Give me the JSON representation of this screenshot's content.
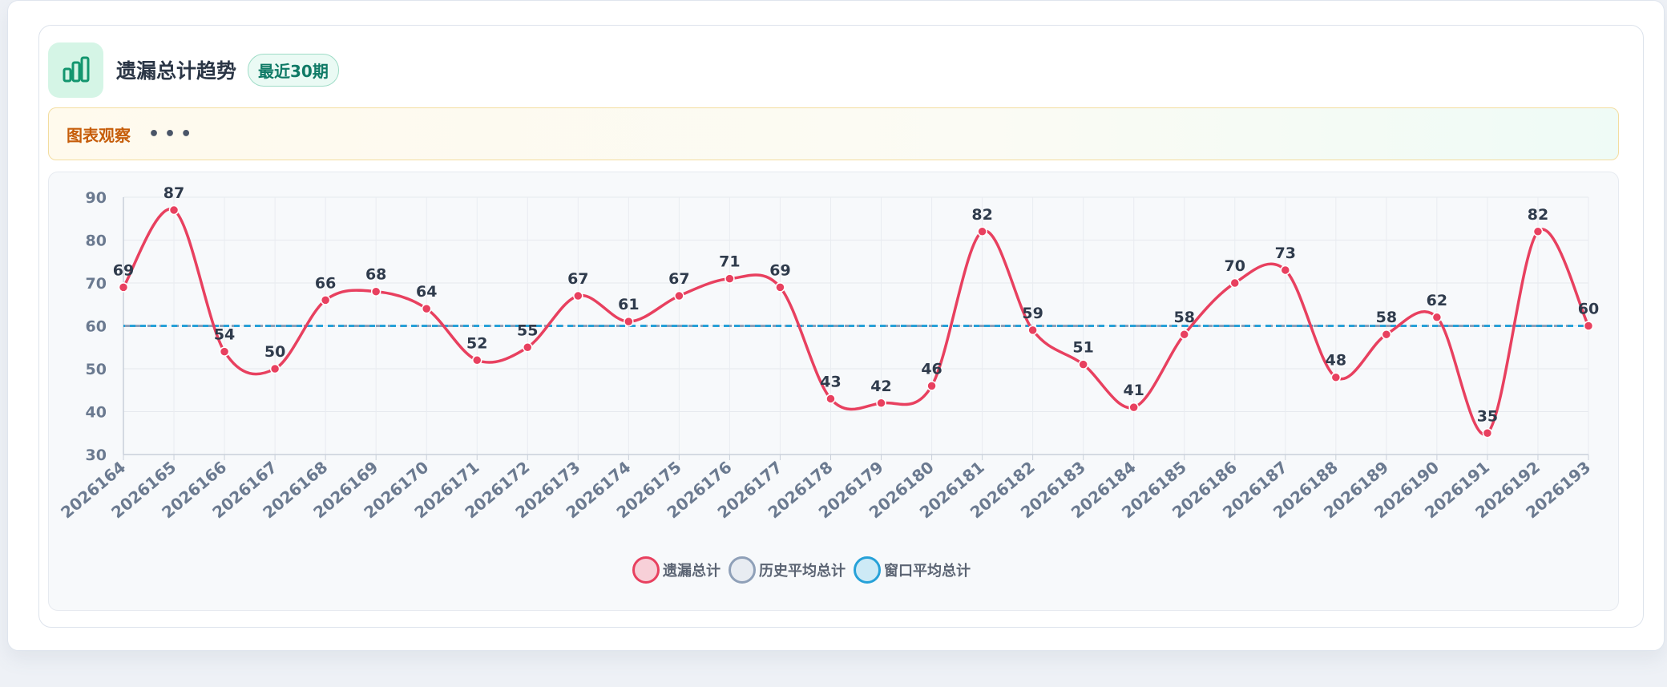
{
  "header": {
    "title": "遗漏总计趋势",
    "badge": "最近30期",
    "icon": "bar-chart-icon"
  },
  "observation": {
    "label": "图表观察",
    "dots": "•••"
  },
  "colors": {
    "series": "#e8405f",
    "hist_avg": "#8fa0b8",
    "window_avg": "#26a1d8",
    "icon_green": "#13966f"
  },
  "chart_data": {
    "type": "line",
    "title": "",
    "xlabel": "",
    "ylabel": "",
    "ylim": [
      30,
      90
    ],
    "yticks": [
      30,
      40,
      50,
      60,
      70,
      80,
      90
    ],
    "grid": true,
    "legend_position": "bottom-center",
    "x": [
      "2026164",
      "2026165",
      "2026166",
      "2026167",
      "2026168",
      "2026169",
      "2026170",
      "2026171",
      "2026172",
      "2026173",
      "2026174",
      "2026175",
      "2026176",
      "2026177",
      "2026178",
      "2026179",
      "2026180",
      "2026181",
      "2026182",
      "2026183",
      "2026184",
      "2026185",
      "2026186",
      "2026187",
      "2026188",
      "2026189",
      "2026190",
      "2026191",
      "2026192",
      "2026193"
    ],
    "series": [
      {
        "name": "遗漏总计",
        "values": [
          69,
          87,
          54,
          50,
          66,
          68,
          64,
          52,
          55,
          67,
          61,
          67,
          71,
          69,
          43,
          42,
          46,
          82,
          59,
          51,
          41,
          58,
          70,
          73,
          48,
          58,
          62,
          35,
          82,
          60
        ],
        "style": "smooth-line-with-labels"
      },
      {
        "name": "历史平均总计",
        "values": [
          60,
          60,
          60,
          60,
          60,
          60,
          60,
          60,
          60,
          60,
          60,
          60,
          60,
          60,
          60,
          60,
          60,
          60,
          60,
          60,
          60,
          60,
          60,
          60,
          60,
          60,
          60,
          60,
          60,
          60
        ],
        "style": "dashed"
      },
      {
        "name": "窗口平均总计",
        "values": [
          60,
          60,
          60,
          60,
          60,
          60,
          60,
          60,
          60,
          60,
          60,
          60,
          60,
          60,
          60,
          60,
          60,
          60,
          60,
          60,
          60,
          60,
          60,
          60,
          60,
          60,
          60,
          60,
          60,
          60
        ],
        "style": "dashed"
      }
    ]
  }
}
